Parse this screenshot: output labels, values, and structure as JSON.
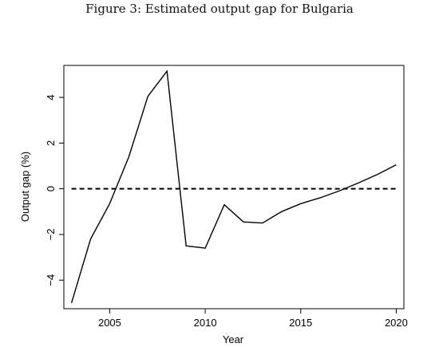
{
  "caption": "Figure 3: Estimated output gap for Bulgaria",
  "chart_data": {
    "type": "line",
    "xlabel": "Year",
    "ylabel": "Output gap (%)",
    "xlim": [
      2002.6,
      2020.4
    ],
    "ylim": [
      -5.25,
      5.4
    ],
    "x_ticks": [
      2005,
      2010,
      2015,
      2020
    ],
    "y_ticks": [
      -4,
      -2,
      0,
      2,
      4
    ],
    "grid": false,
    "series": [
      {
        "style": "solid",
        "x": [
          2003,
          2004,
          2005,
          2006,
          2007,
          2008,
          2009,
          2010,
          2011,
          2012,
          2013,
          2014,
          2015,
          2016,
          2017,
          2018,
          2019,
          2020
        ],
        "values": [
          -5.0,
          -2.2,
          -0.65,
          1.4,
          4.05,
          5.15,
          -2.5,
          -2.6,
          -0.7,
          -1.45,
          -1.5,
          -1.0,
          -0.65,
          -0.4,
          -0.1,
          0.25,
          0.62,
          1.05
        ]
      },
      {
        "style": "dashed",
        "x": [
          2003,
          2020
        ],
        "values": [
          0,
          0
        ]
      }
    ]
  }
}
